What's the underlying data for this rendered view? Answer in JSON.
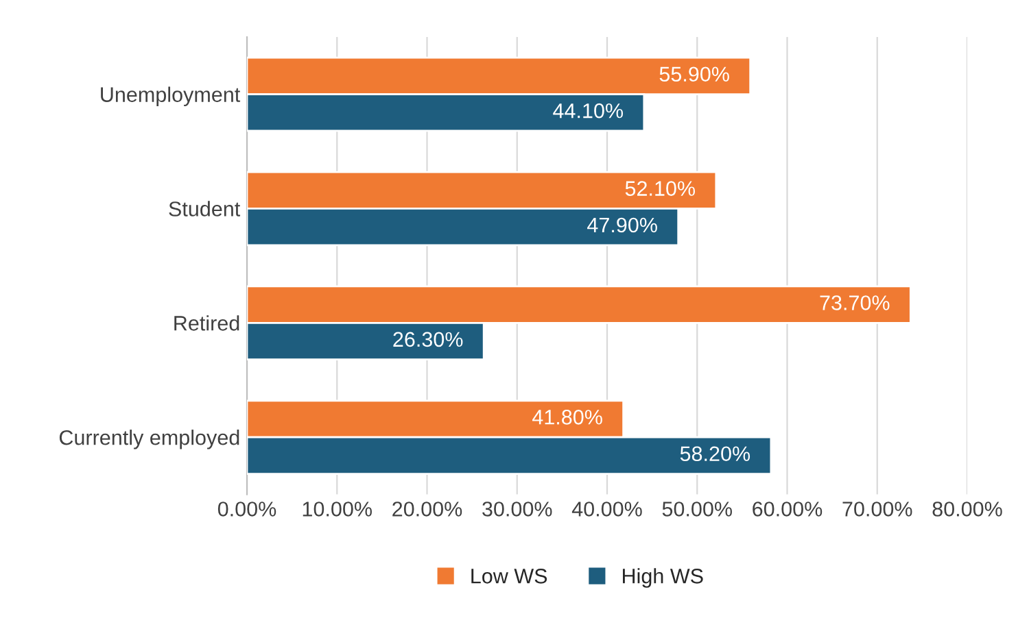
{
  "chart_data": {
    "type": "bar",
    "orientation": "horizontal",
    "categories": [
      "Unemployment",
      "Student",
      "Retired",
      "Currently employed"
    ],
    "series": [
      {
        "name": "Low WS",
        "color": "#f07a32",
        "values": [
          55.9,
          52.1,
          73.7,
          41.8
        ],
        "value_labels": [
          "55.90%",
          "52.10%",
          "73.70%",
          "41.80%"
        ]
      },
      {
        "name": "High WS",
        "color": "#1e5d7e",
        "values": [
          44.1,
          47.9,
          26.3,
          58.2
        ],
        "value_labels": [
          "44.10%",
          "47.90%",
          "26.30%",
          "58.20%"
        ]
      }
    ],
    "xlim": [
      0,
      80
    ],
    "xticks": [
      {
        "value": 0,
        "label": "0.00%"
      },
      {
        "value": 10,
        "label": "10.00%"
      },
      {
        "value": 20,
        "label": "20.00%"
      },
      {
        "value": 30,
        "label": "30.00%"
      },
      {
        "value": 40,
        "label": "40.00%"
      },
      {
        "value": 50,
        "label": "50.00%"
      },
      {
        "value": 60,
        "label": "60.00%"
      },
      {
        "value": 70,
        "label": "70.00%"
      },
      {
        "value": 80,
        "label": "80.00%"
      }
    ],
    "grid": "x",
    "legend": "bottom"
  }
}
